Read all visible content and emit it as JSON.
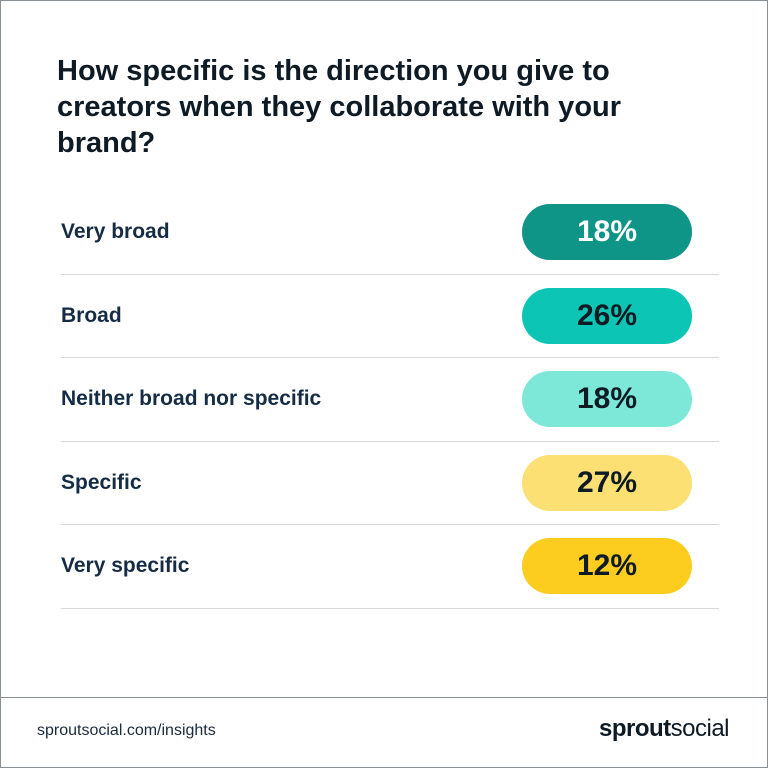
{
  "chart_data": {
    "type": "table",
    "title": "How specific is the direction you give to creators when they collaborate with your brand?",
    "categories": [
      "Very broad",
      "Broad",
      "Neither broad nor specific",
      "Specific",
      "Very specific"
    ],
    "values": [
      18,
      26,
      18,
      27,
      12
    ],
    "labels": [
      "18%",
      "26%",
      "18%",
      "27%",
      "12%"
    ],
    "pill_colors": [
      "#0f9488",
      "#0cc5b4",
      "#7de8d8",
      "#fde073",
      "#fccd1f"
    ],
    "text_colors": [
      "#ffffff",
      "#0e1a24",
      "#0e1a24",
      "#0e1a24",
      "#0e1a24"
    ]
  },
  "footer": {
    "url": "sproutsocial.com/insights",
    "brand_strong": "sprout",
    "brand_light": "social"
  }
}
